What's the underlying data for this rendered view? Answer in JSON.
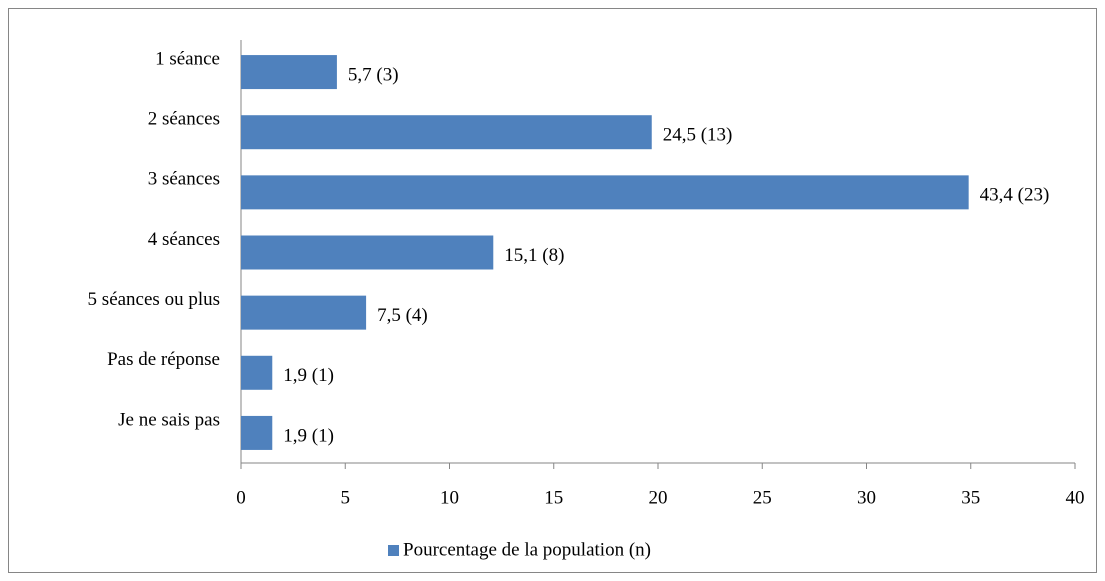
{
  "chart_data": {
    "type": "hbar",
    "categories": [
      "1 séance",
      "2 séances",
      "3 séances",
      "4 séances",
      "5 séances ou plus",
      "Pas de réponse",
      "Je ne sais pas"
    ],
    "series": [
      {
        "name": "Pourcentage de la population (n)",
        "color": "#4f81bd",
        "values": [
          4.6,
          19.7,
          34.9,
          12.1,
          6.0,
          1.5,
          1.5
        ],
        "data_labels": [
          "5,7 (3)",
          "24,5 (13)",
          "43,4 (23)",
          "15,1 (8)",
          "7,5 (4)",
          "1,9 (1)",
          "1,9 (1)"
        ]
      }
    ],
    "xlim": [
      0,
      40
    ],
    "xticks": [
      0,
      5,
      10,
      15,
      20,
      25,
      30,
      35,
      40
    ],
    "legend": "bottom"
  }
}
